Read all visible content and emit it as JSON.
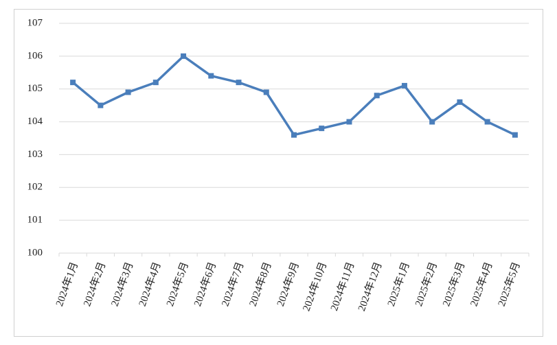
{
  "chart_data": {
    "type": "line",
    "categories": [
      "2024年1月",
      "2024年2月",
      "2024年3月",
      "2024年4月",
      "2024年5月",
      "2024年6月",
      "2024年7月",
      "2024年8月",
      "2024年9月",
      "2024年10月",
      "2024年11月",
      "2024年12月",
      "2025年1月",
      "2025年2月",
      "2025年3月",
      "2025年4月",
      "2025年5月"
    ],
    "values": [
      105.2,
      104.5,
      104.9,
      105.2,
      106.0,
      105.4,
      105.2,
      104.9,
      103.6,
      103.8,
      104.0,
      104.8,
      105.1,
      104.0,
      104.6,
      104.0,
      103.6
    ],
    "color": "#4a7ebb",
    "ylim": [
      100,
      107
    ],
    "yticks": [
      100,
      101,
      102,
      103,
      104,
      105,
      106,
      107
    ],
    "grid": true
  }
}
